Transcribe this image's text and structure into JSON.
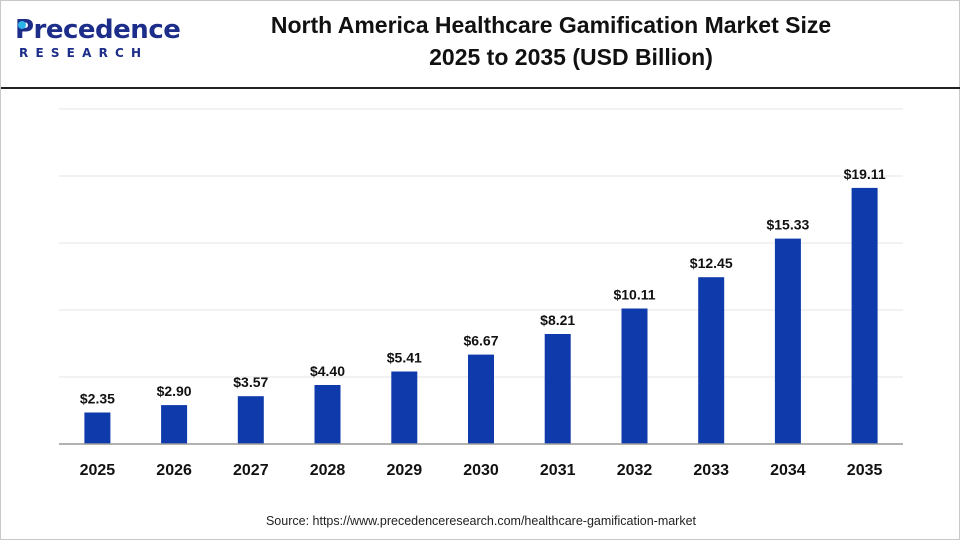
{
  "logo": {
    "name": "Precedence",
    "tagline": "RESEARCH"
  },
  "title": {
    "line1": "North America Healthcare Gamification Market Size",
    "line2": "2025 to 2035 (USD Billion)"
  },
  "source": "Source: https://www.precedenceresearch.com/healthcare-gamification-market",
  "colors": {
    "bar": "#0f3aab",
    "brand": "#1c2d8a",
    "grid": "#e6e6e6",
    "axis": "#999999"
  },
  "chart_data": {
    "type": "bar",
    "title": "North America Healthcare Gamification Market Size 2025 to 2035 (USD Billion)",
    "xlabel": "",
    "ylabel": "",
    "categories": [
      "2025",
      "2026",
      "2027",
      "2028",
      "2029",
      "2030",
      "2031",
      "2032",
      "2033",
      "2034",
      "2035"
    ],
    "values": [
      2.35,
      2.9,
      3.57,
      4.4,
      5.41,
      6.67,
      8.21,
      10.11,
      12.45,
      15.33,
      19.11
    ],
    "data_labels": [
      "$2.35",
      "$2.90",
      "$3.57",
      "$4.40",
      "$5.41",
      "$6.67",
      "$8.21",
      "$10.11",
      "$12.45",
      "$15.33",
      "$19.11"
    ],
    "ylim": [
      0,
      25
    ],
    "grid": true,
    "legend": "none"
  }
}
